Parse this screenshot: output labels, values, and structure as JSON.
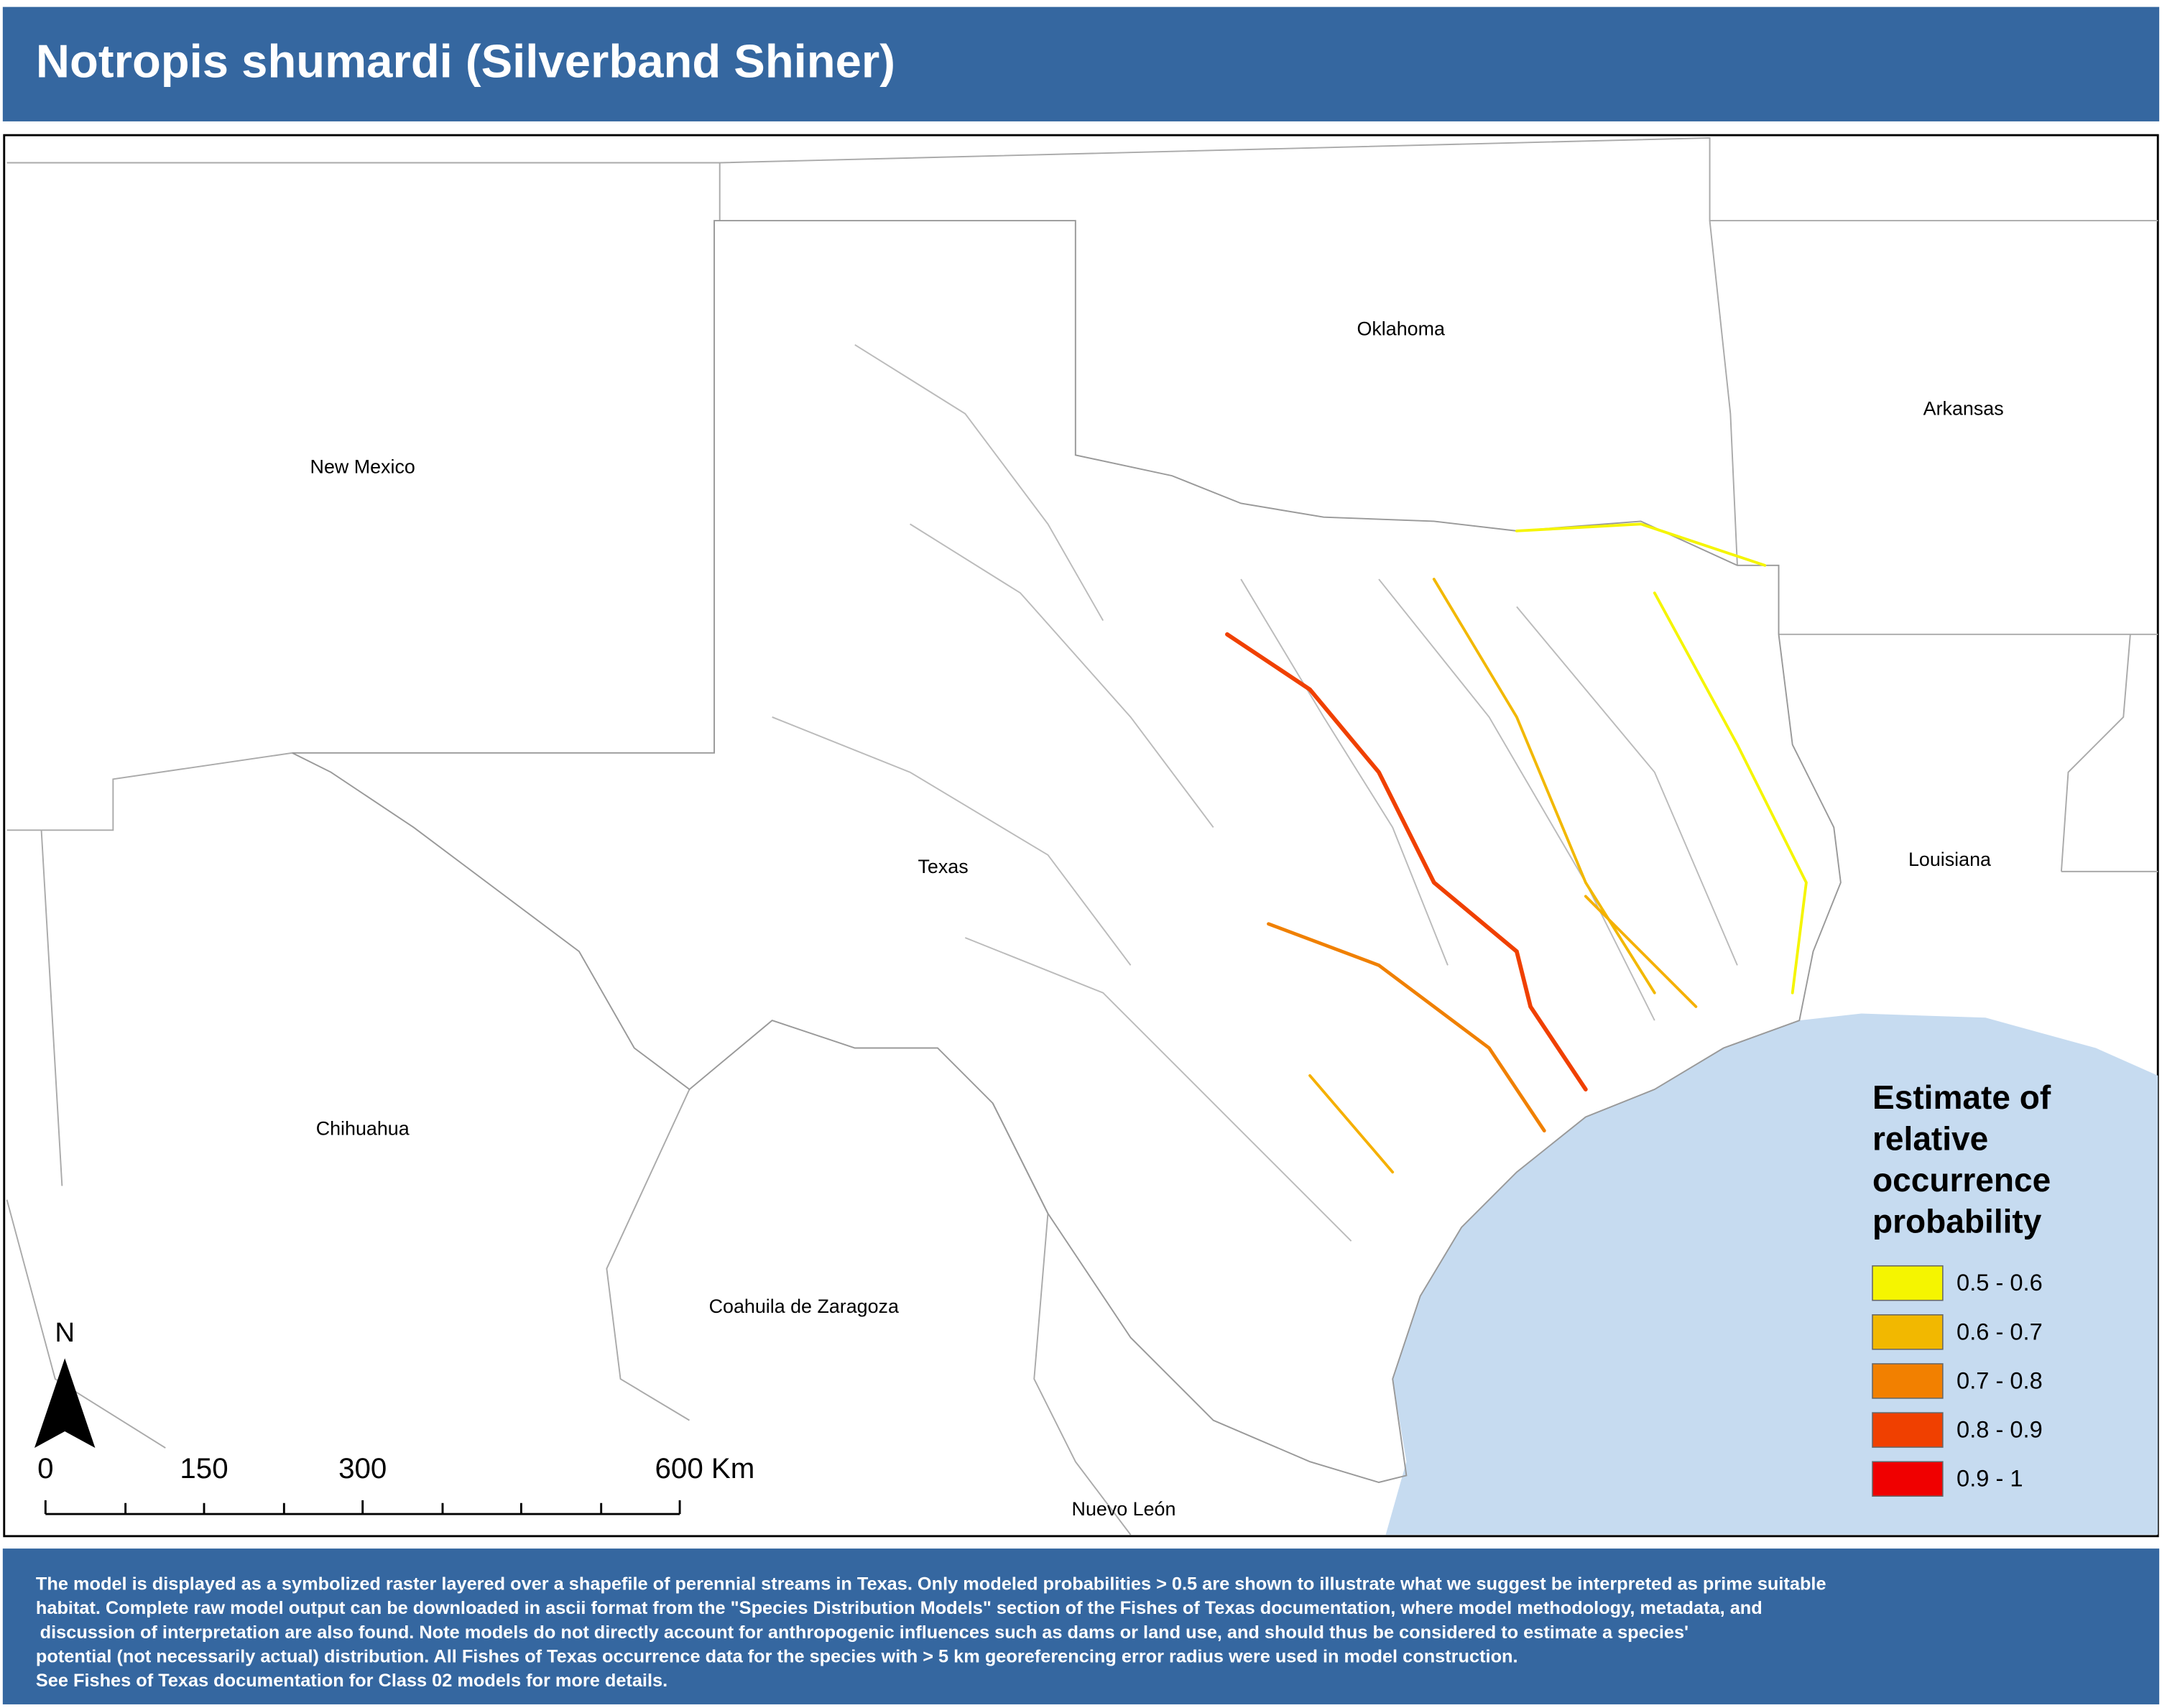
{
  "header": {
    "title": "Notropis shumardi (Silverband Shiner)"
  },
  "map": {
    "labels": [
      {
        "text": "Oklahoma"
      },
      {
        "text": "Arkansas"
      },
      {
        "text": "New Mexico"
      },
      {
        "text": "Texas"
      },
      {
        "text": "Louisiana"
      },
      {
        "text": "Chihuahua"
      },
      {
        "text": "Coahuila de Zaragoza"
      },
      {
        "text": "Nuevo León"
      }
    ],
    "north": "N",
    "scale_bar": [
      "0",
      "150",
      "300",
      "600 Km"
    ]
  },
  "legend": {
    "title": [
      "Estimate of",
      "relative",
      "occurrence",
      "probability"
    ],
    "items": [
      {
        "label": "0.5 - 0.6",
        "color": "#f5f500"
      },
      {
        "label": "0.6 - 0.7",
        "color": "#f2b800"
      },
      {
        "label": "0.7 - 0.8",
        "color": "#f28000"
      },
      {
        "label": "0.8 - 0.9",
        "color": "#f04000"
      },
      {
        "label": "0.9 - 1",
        "color": "#f00000"
      }
    ]
  },
  "footer": {
    "lines": [
      "The model is displayed as a symbolized raster layered over a shapefile of perennial streams in Texas. Only modeled probabilities > 0.5 are shown to illustrate what we suggest be interpreted as prime suitable",
      "habitat. Complete raw model output can be downloaded in ascii format from the \"Species Distribution Models\" section of the Fishes of Texas documentation, where model methodology, metadata, and",
      "discussion of interpretation are also found. Note models do not directly account for anthropogenic influences such as dams or land use, and should thus be considered to estimate a species'",
      "potential (not necessarily actual) distribution. All Fishes of Texas occurrence data for the species with > 5 km georeferencing error radius were used in model construction.",
      "See Fishes of Texas documentation for Class 02 models for more details."
    ]
  }
}
